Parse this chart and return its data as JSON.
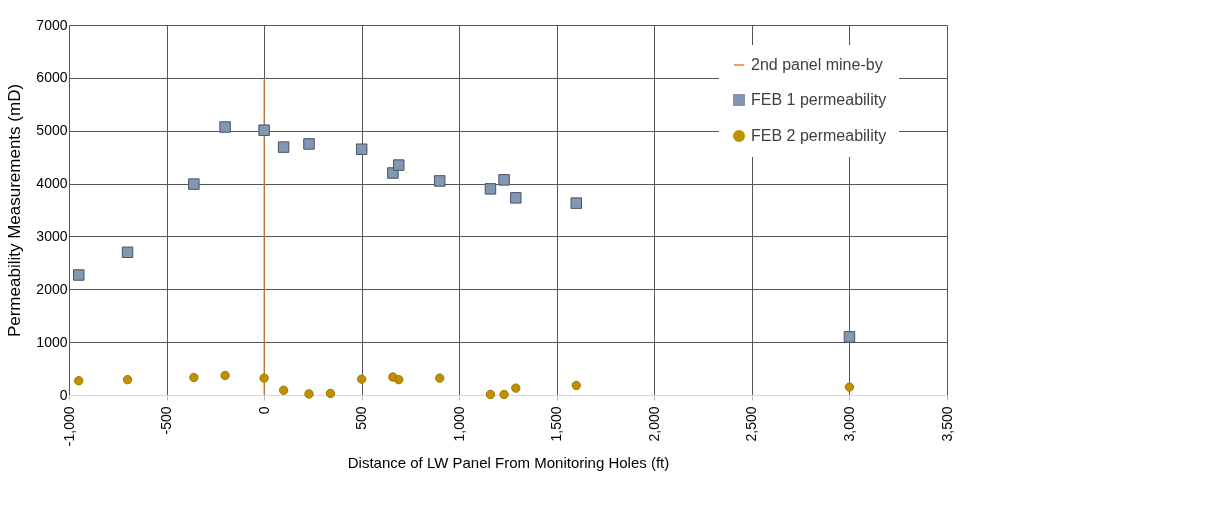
{
  "chart_data": {
    "type": "scatter",
    "xlabel": "Distance of LW Panel From Monitoring Holes (ft)",
    "ylabel": "Permeability Measurements (mD)",
    "xlim": [
      -1000,
      3500
    ],
    "xticks": [
      {
        "value": -1000,
        "label": "-1,000"
      },
      -500,
      0,
      500,
      {
        "value": 1000,
        "label": "1,000"
      },
      {
        "value": 1500,
        "label": "1,500"
      },
      {
        "value": 2000,
        "label": "2,000"
      },
      {
        "value": 2500,
        "label": "2,500"
      },
      {
        "value": 3000,
        "label": "3,000"
      },
      {
        "value": 3500,
        "label": "3,500"
      }
    ],
    "ylim": [
      0,
      7000
    ],
    "yticks": [
      0,
      1000,
      2000,
      3000,
      4000,
      5000,
      6000,
      7000
    ],
    "grid": true,
    "legend": "top right",
    "series": [
      {
        "name": "2nd panel mine-by",
        "type": "line",
        "color": "#ed7d31",
        "marker": "none",
        "x": [
          0,
          0
        ],
        "values": [
          0,
          6000
        ]
      },
      {
        "name": "FEB 1 permeability",
        "color": "#8497b0",
        "marker": "square",
        "x": [
          -950,
          -700,
          -360,
          -200,
          0,
          100,
          230,
          500,
          660,
          690,
          900,
          1160,
          1230,
          1290,
          1600,
          3000
        ],
        "values": [
          2270,
          2700,
          3990,
          5070,
          5010,
          4690,
          4750,
          4650,
          4200,
          4350,
          4050,
          3900,
          4070,
          3730,
          3630,
          1100
        ]
      },
      {
        "name": "FEB 2 permeability",
        "color": "#bf9000",
        "marker": "circle",
        "x": [
          -950,
          -700,
          -360,
          -200,
          0,
          100,
          230,
          340,
          500,
          660,
          690,
          900,
          1160,
          1230,
          1290,
          1600,
          3000
        ],
        "values": [
          270,
          290,
          330,
          370,
          320,
          90,
          20,
          30,
          300,
          340,
          290,
          320,
          10,
          10,
          130,
          180,
          150
        ]
      }
    ]
  }
}
